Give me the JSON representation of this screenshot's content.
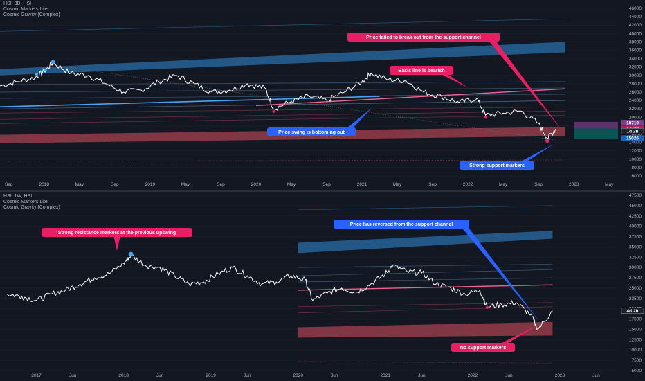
{
  "panels": [
    {
      "header": [
        "HSI, 3D, HSI",
        "Cosmic Markers Lite",
        "Cosmic Gravity (Complex)"
      ],
      "y_ticks": [
        "46000",
        "44000",
        "42000",
        "40000",
        "38000",
        "36000",
        "34000",
        "32000",
        "30000",
        "28000",
        "26000",
        "24000",
        "22000",
        "20000",
        "18000",
        "16000",
        "14000",
        "12000",
        "10000",
        "8000",
        "6000"
      ],
      "x_ticks": [
        "Sep",
        "2018",
        "May",
        "Sep",
        "2019",
        "May",
        "Sep",
        "2020",
        "May",
        "Sep",
        "2021",
        "May",
        "Sep",
        "2022",
        "May",
        "Sep",
        "2023",
        "May"
      ],
      "price_tags": [
        {
          "text": "18719",
          "color": "#7b3f8c"
        },
        {
          "text": "17349",
          "color": "#c2185b"
        },
        {
          "text": "1d 2h",
          "color": "#1e222d"
        },
        {
          "text": "15026",
          "color": "#1565c0"
        }
      ],
      "callouts": [
        {
          "text": "Price failed to break out from the support channel",
          "color": "#e91e63"
        },
        {
          "text": "Basis line is bearish",
          "color": "#e91e63"
        },
        {
          "text": "Price swing is bottoming out",
          "color": "#2962ff"
        },
        {
          "text": "Strong support markers",
          "color": "#2962ff"
        }
      ]
    },
    {
      "header": [
        "HSI, 1W, HSI",
        "Cosmic Markers Lite",
        "Cosmic Gravity (Complex)"
      ],
      "y_ticks": [
        "47500",
        "45000",
        "42500",
        "40000",
        "37500",
        "35000",
        "32500",
        "30000",
        "27500",
        "25000",
        "22500",
        "20000",
        "17500",
        "15000",
        "12500",
        "10000",
        "7500",
        "5000"
      ],
      "x_ticks": [
        "2017",
        "Jun",
        "2018",
        "Jun",
        "2019",
        "Jun",
        "2020",
        "Jun",
        "2021",
        "Jun",
        "2022",
        "Jun",
        "2023",
        "Jun"
      ],
      "price_tags": [
        {
          "text": "4d 2h",
          "color": "#1e222d"
        }
      ],
      "callouts": [
        {
          "text": "Strong resistance markers at the previous upswing",
          "color": "#e91e63"
        },
        {
          "text": "Price has reversed from the support channel",
          "color": "#2962ff"
        },
        {
          "text": "No support markers",
          "color": "#e91e63"
        }
      ]
    }
  ],
  "chart_data": [
    {
      "type": "line",
      "title": "HSI, 3D, HSI",
      "ylim": [
        5000,
        47000
      ],
      "x": [
        "2017-08",
        "2017-10",
        "2017-12",
        "2018-01",
        "2018-02",
        "2018-04",
        "2018-06",
        "2018-08",
        "2018-10",
        "2018-12",
        "2019-02",
        "2019-04",
        "2019-06",
        "2019-08",
        "2019-10",
        "2019-12",
        "2020-02",
        "2020-03",
        "2020-05",
        "2020-07",
        "2020-09",
        "2020-11",
        "2021-01",
        "2021-02",
        "2021-04",
        "2021-06",
        "2021-08",
        "2021-10",
        "2021-12",
        "2022-02",
        "2022-03",
        "2022-05",
        "2022-07",
        "2022-09",
        "2022-10",
        "2022-11"
      ],
      "series": [
        {
          "values": [
            27500,
            28500,
            29500,
            31000,
            33000,
            30500,
            30000,
            28000,
            26000,
            26500,
            28500,
            30000,
            28000,
            26000,
            26500,
            28000,
            27000,
            22000,
            23800,
            25000,
            24000,
            26000,
            28500,
            30500,
            29000,
            28700,
            26000,
            25000,
            23500,
            24500,
            20500,
            21000,
            21500,
            18500,
            15000,
            17300
          ]
        }
      ],
      "bands": [
        {
          "name": "resistance channel",
          "color": "#2a6fa8",
          "start": [
            30000,
            31500
          ],
          "end": [
            35500,
            38000
          ]
        },
        {
          "name": "support channel",
          "color": "#a5434f",
          "start": [
            13800,
            15800
          ],
          "end": [
            15500,
            17700
          ]
        }
      ]
    },
    {
      "type": "line",
      "title": "HSI, 1W, HSI",
      "ylim": [
        5000,
        47500
      ],
      "x": [
        "2016-09",
        "2016-11",
        "2017-01",
        "2017-03",
        "2017-05",
        "2017-07",
        "2017-09",
        "2017-11",
        "2018-01",
        "2018-02",
        "2018-04",
        "2018-06",
        "2018-08",
        "2018-10",
        "2018-12",
        "2019-02",
        "2019-04",
        "2019-06",
        "2019-08",
        "2019-10",
        "2019-12",
        "2020-02",
        "2020-03",
        "2020-05",
        "2020-07",
        "2020-09",
        "2020-11",
        "2021-01",
        "2021-02",
        "2021-04",
        "2021-06",
        "2021-08",
        "2021-10",
        "2021-12",
        "2022-02",
        "2022-03",
        "2022-05",
        "2022-07",
        "2022-09",
        "2022-10",
        "2022-12"
      ],
      "series": [
        {
          "values": [
            23500,
            23000,
            22000,
            23500,
            24500,
            26000,
            27500,
            28500,
            31000,
            33000,
            30500,
            30000,
            28000,
            26000,
            26500,
            28500,
            30000,
            28000,
            26000,
            26500,
            28000,
            27000,
            22000,
            23800,
            25000,
            24000,
            26000,
            28500,
            30500,
            29000,
            28700,
            26000,
            25000,
            23500,
            24500,
            20500,
            21000,
            21500,
            18500,
            15000,
            19500
          ]
        }
      ],
      "bands": [
        {
          "name": "resistance channel",
          "color": "#2a6fa8",
          "start": [
            33500,
            36000
          ],
          "end": [
            37000,
            38900
          ]
        },
        {
          "name": "support channel",
          "color": "#a5434f",
          "start": [
            13000,
            15500
          ],
          "end": [
            13500,
            16800
          ]
        }
      ]
    }
  ]
}
